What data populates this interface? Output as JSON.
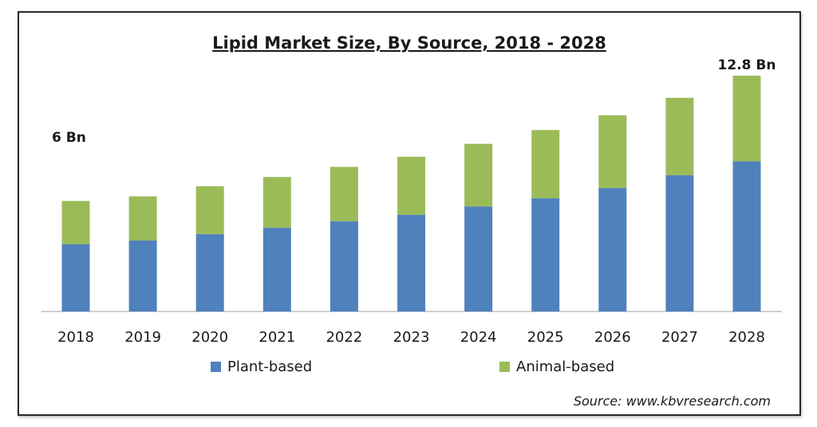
{
  "colors": {
    "plant": "#4f81bd",
    "animal": "#9bbb59",
    "axis": "#bfbfbf"
  },
  "source_text": "Source:  www.kbvresearch.com",
  "chart_data": {
    "type": "bar",
    "stacked": true,
    "title": "Lipid Market Size, By Source, 2018 - 2028",
    "xlabel": "",
    "ylabel": "",
    "categories": [
      "2018",
      "2019",
      "2020",
      "2021",
      "2022",
      "2023",
      "2024",
      "2025",
      "2026",
      "2027",
      "2028"
    ],
    "series": [
      {
        "name": "Plant-based",
        "values": [
          3.65,
          3.85,
          4.2,
          4.55,
          4.9,
          5.25,
          5.7,
          6.15,
          6.7,
          7.4,
          8.15
        ]
      },
      {
        "name": "Animal-based",
        "values": [
          2.35,
          2.4,
          2.6,
          2.75,
          2.95,
          3.15,
          3.4,
          3.7,
          3.95,
          4.2,
          4.65
        ]
      }
    ],
    "annotations": [
      {
        "category": "2018",
        "text": "6 Bn"
      },
      {
        "category": "2028",
        "text": "12.8 Bn"
      }
    ],
    "ylim": [
      0,
      12.8
    ],
    "grid": false,
    "legend_position": "bottom"
  }
}
